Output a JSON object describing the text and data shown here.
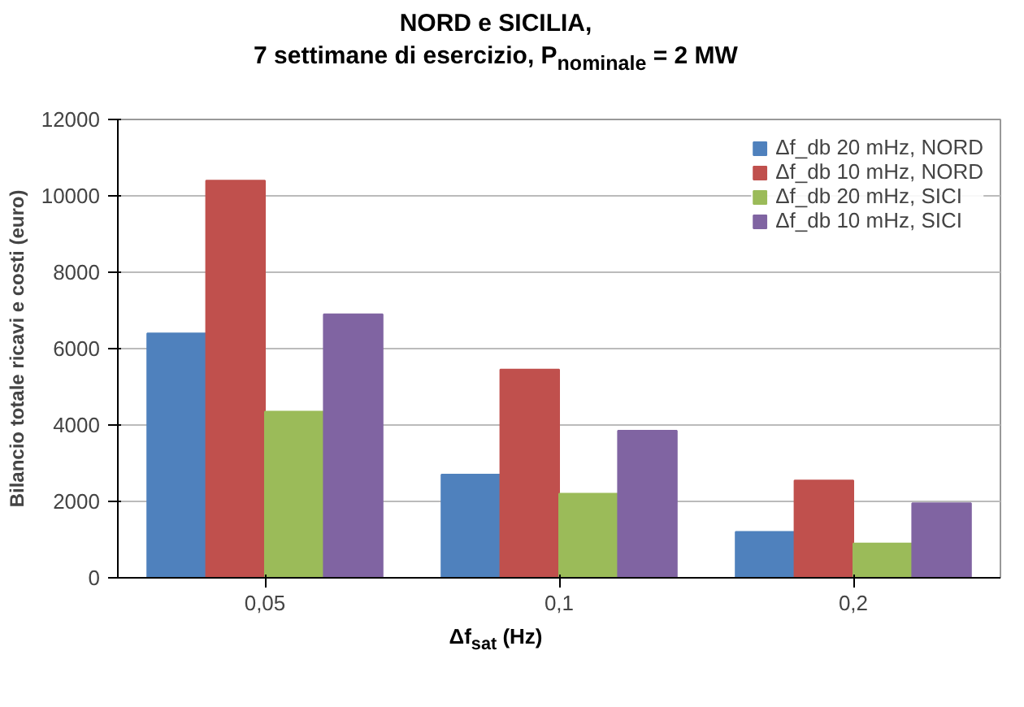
{
  "chart_data": {
    "type": "bar",
    "title": "NORD e SICILIA,",
    "subtitle": "7 settimane di esercizio, P$_{nominale}$ = 2 MW",
    "xlabel": "Δf$_{sat}$ (Hz)",
    "ylabel": "Bilancio totale ricavi e costi (euro)",
    "categories": [
      "0,05",
      "0,1",
      "0,2"
    ],
    "series": [
      {
        "name": "Δf_db 20 mHz, NORD",
        "color": "#4f81bd",
        "values": [
          6400,
          2700,
          1200
        ]
      },
      {
        "name": "Δf_db 10 mHz, NORD",
        "color": "#c0504d",
        "values": [
          10400,
          5450,
          2550
        ]
      },
      {
        "name": "Δf_db 20 mHz, SICI",
        "color": "#9bbb59",
        "values": [
          4350,
          2200,
          900
        ]
      },
      {
        "name": "Δf_db 10 mHz, SICI",
        "color": "#8064a2",
        "values": [
          6900,
          3850,
          1950
        ]
      }
    ],
    "ylim": [
      0,
      12000
    ],
    "yticks": [
      0,
      2000,
      4000,
      6000,
      8000,
      10000,
      12000
    ],
    "grid": "y",
    "legend": "top right"
  }
}
